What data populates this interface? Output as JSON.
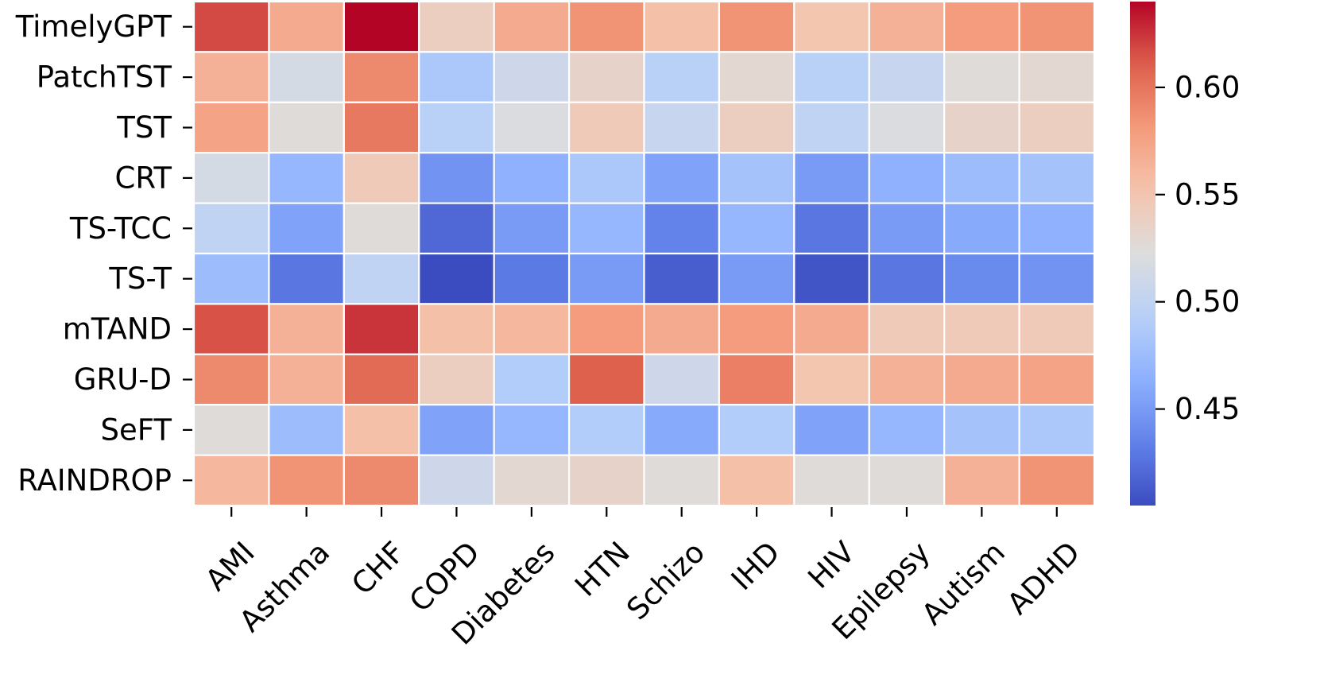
{
  "chart_data": {
    "type": "heatmap",
    "title": "",
    "xlabel": "",
    "ylabel": "",
    "rows": [
      "TimelyGPT",
      "PatchTST",
      "TST",
      "CRT",
      "TS-TCC",
      "TS-T",
      "mTAND",
      "GRU-D",
      "SeFT",
      "RAINDROP"
    ],
    "columns": [
      "AMI",
      "Asthma",
      "CHF",
      "COPD",
      "Diabetes",
      "HTN",
      "Schizo",
      "IHD",
      "HIV",
      "Epilepsy",
      "Autism",
      "ADHD"
    ],
    "values": [
      [
        0.618,
        0.57,
        0.64,
        0.54,
        0.57,
        0.585,
        0.555,
        0.585,
        0.55,
        0.565,
        0.58,
        0.585
      ],
      [
        0.565,
        0.515,
        0.59,
        0.485,
        0.51,
        0.535,
        0.495,
        0.53,
        0.495,
        0.505,
        0.525,
        0.53
      ],
      [
        0.575,
        0.525,
        0.598,
        0.495,
        0.52,
        0.545,
        0.505,
        0.54,
        0.5,
        0.52,
        0.535,
        0.54
      ],
      [
        0.515,
        0.47,
        0.545,
        0.445,
        0.465,
        0.485,
        0.455,
        0.48,
        0.45,
        0.465,
        0.475,
        0.48
      ],
      [
        0.5,
        0.455,
        0.525,
        0.42,
        0.45,
        0.47,
        0.435,
        0.47,
        0.428,
        0.45,
        0.46,
        0.465
      ],
      [
        0.475,
        0.428,
        0.5,
        0.405,
        0.43,
        0.45,
        0.415,
        0.45,
        0.41,
        0.428,
        0.44,
        0.445
      ],
      [
        0.615,
        0.565,
        0.625,
        0.555,
        0.56,
        0.58,
        0.57,
        0.58,
        0.57,
        0.545,
        0.545,
        0.545
      ],
      [
        0.59,
        0.565,
        0.605,
        0.54,
        0.49,
        0.61,
        0.51,
        0.595,
        0.55,
        0.565,
        0.57,
        0.575
      ],
      [
        0.525,
        0.475,
        0.555,
        0.455,
        0.47,
        0.49,
        0.46,
        0.49,
        0.455,
        0.47,
        0.48,
        0.485
      ],
      [
        0.56,
        0.585,
        0.59,
        0.51,
        0.53,
        0.535,
        0.525,
        0.555,
        0.525,
        0.525,
        0.565,
        0.585
      ]
    ],
    "vmin": 0.405,
    "vmax": 0.64,
    "colormap": "coolwarm",
    "colorbar": {
      "ticks": [
        0.45,
        0.5,
        0.55,
        0.6
      ],
      "tick_labels": [
        "0.45",
        "0.50",
        "0.55",
        "0.60"
      ],
      "placement": "right"
    },
    "grid": false
  }
}
